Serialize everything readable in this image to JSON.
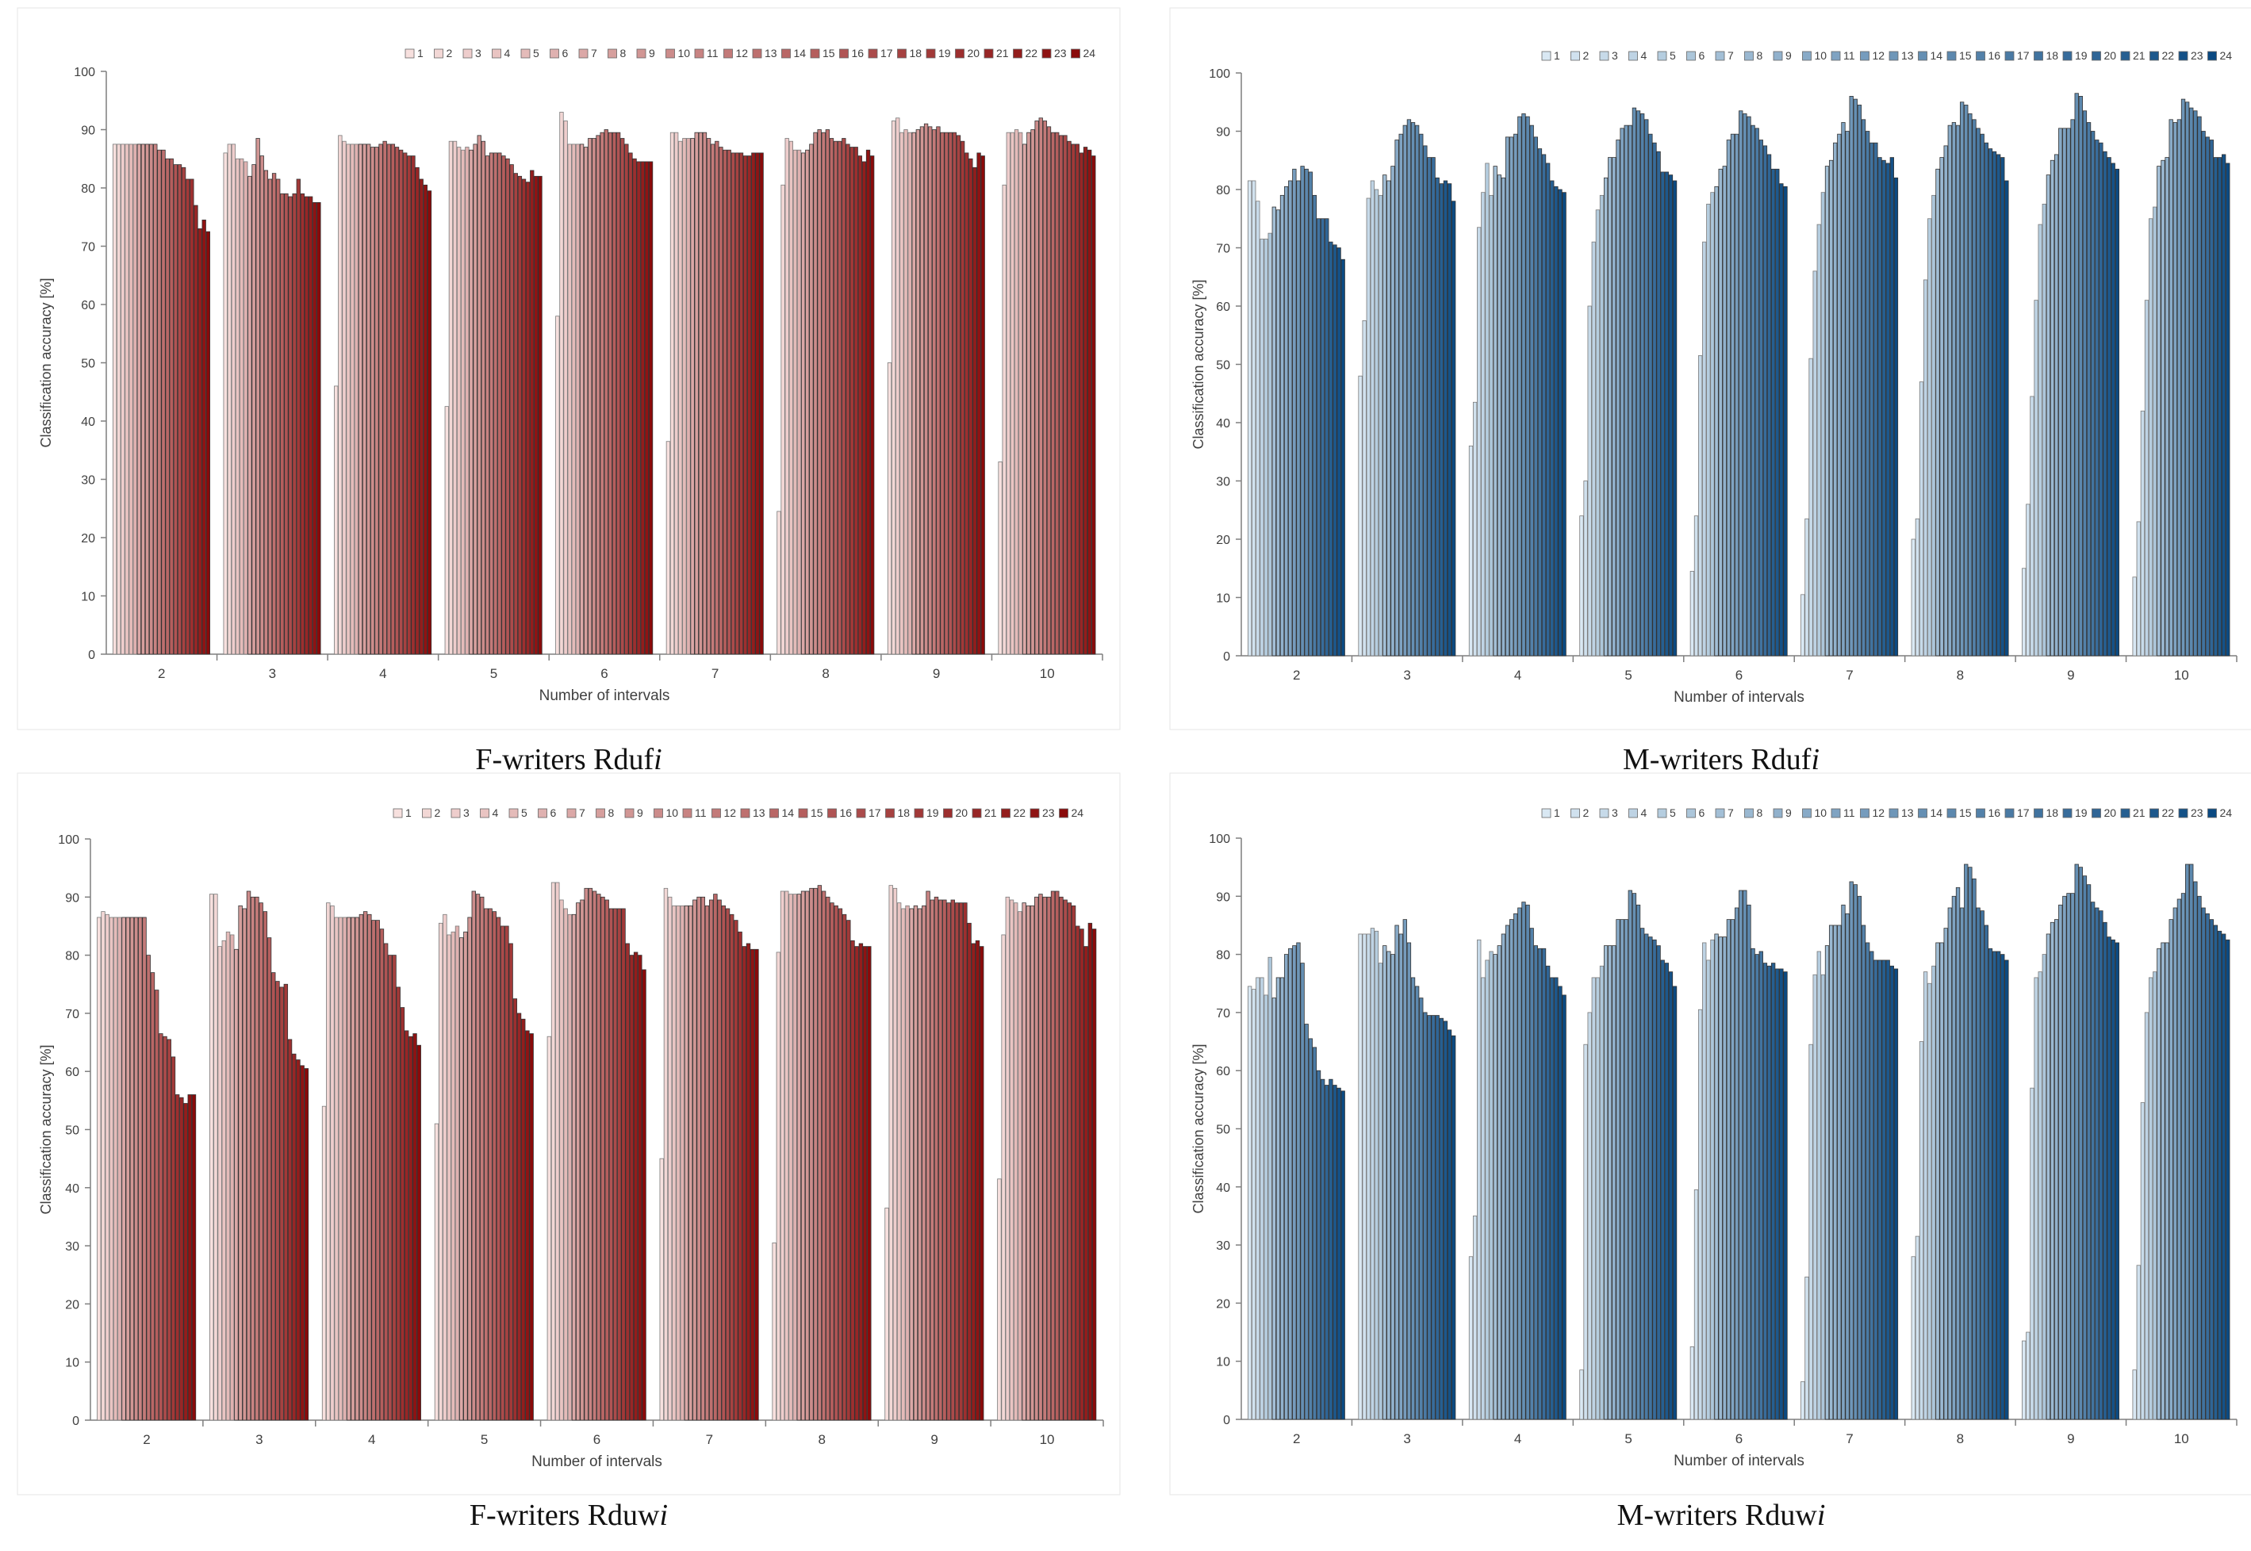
{
  "figure": {
    "panels": [
      {
        "caption_prefix": "F-writers Rduf",
        "caption_italic": "i"
      },
      {
        "caption_prefix": "M-writers Rduf",
        "caption_italic": "i"
      },
      {
        "caption_prefix": "F-writers Rduw",
        "caption_italic": "i"
      },
      {
        "caption_prefix": "M-writers Rduw",
        "caption_italic": "i"
      }
    ]
  },
  "chart_data": [
    {
      "type": "bar",
      "title": "F-writers Rdufi",
      "xlabel": "Number of intervals",
      "ylabel": "Classification accuracy [%]",
      "ylim": [
        0,
        100
      ],
      "yticks": [
        "0",
        "10",
        "20",
        "30",
        "40",
        "50",
        "60",
        "70",
        "80",
        "90",
        "100"
      ],
      "categories": [
        "2",
        "3",
        "4",
        "5",
        "6",
        "7",
        "8",
        "9",
        "10"
      ],
      "legend": [
        "1",
        "2",
        "3",
        "4",
        "5",
        "6",
        "7",
        "8",
        "9",
        "10",
        "11",
        "12",
        "13",
        "14",
        "15",
        "16",
        "17",
        "18",
        "19",
        "20",
        "21",
        "22",
        "23",
        "24"
      ],
      "colors": {
        "light": "#f7e0de",
        "dark": "#8a0a0a"
      },
      "values": [
        [
          87.5,
          87.5,
          87.5,
          87.5,
          87.5,
          87.5,
          87.5,
          87.5,
          87.5,
          87.5,
          87.5,
          86.5,
          86.5,
          85,
          85,
          84,
          84,
          83.5,
          81.5,
          81.5,
          77,
          73,
          74.5,
          72.5
        ],
        [
          86,
          87.5,
          87.5,
          85,
          85,
          84.5,
          82,
          84,
          88.5,
          85.5,
          83,
          81.5,
          82.5,
          81.5,
          79,
          79,
          78.5,
          79,
          81.5,
          79,
          78.5,
          78.5,
          77.5,
          77.5
        ],
        [
          46,
          89,
          88,
          87.5,
          87.5,
          87.5,
          87.5,
          87.5,
          87.5,
          87,
          87,
          87.5,
          88,
          87.5,
          87.5,
          87,
          86.5,
          86,
          85.5,
          85.5,
          83.5,
          81.5,
          80.5,
          79.5
        ],
        [
          42.5,
          88,
          88,
          87,
          86.5,
          87,
          86.5,
          87.5,
          89,
          88,
          85.5,
          86,
          86,
          86,
          85.5,
          85,
          84,
          82.5,
          82,
          81.5,
          81,
          83,
          82,
          82
        ],
        [
          58,
          93,
          91.5,
          87.5,
          87.5,
          87.5,
          87.5,
          87,
          88.5,
          88.5,
          89,
          89.5,
          90,
          89.5,
          89.5,
          89.5,
          88.5,
          87.5,
          86,
          85,
          84.5,
          84.5,
          84.5,
          84.5
        ],
        [
          36.5,
          89.5,
          89.5,
          88,
          88.5,
          88.5,
          88.5,
          89.5,
          89.5,
          89.5,
          88.5,
          87.5,
          88,
          87,
          86.5,
          86.5,
          86,
          86,
          86,
          85.5,
          85.5,
          86,
          86,
          86
        ],
        [
          24.5,
          80.5,
          88.5,
          88,
          86.5,
          86.5,
          86,
          86.5,
          87.5,
          89.5,
          90,
          89.5,
          90,
          88.5,
          88,
          88,
          88.5,
          87.5,
          87,
          87,
          85.5,
          84.5,
          86.5,
          85.5
        ],
        [
          50,
          91.5,
          92,
          89.5,
          90,
          89.5,
          89.5,
          90,
          90.5,
          91,
          90.5,
          90,
          90.5,
          89.5,
          89.5,
          89.5,
          89.5,
          89,
          88,
          86,
          85,
          83.5,
          86,
          85.5
        ],
        [
          33,
          80.5,
          89.5,
          89.5,
          90,
          89.5,
          87.5,
          89.5,
          90,
          91.5,
          92,
          91.5,
          90.5,
          89.5,
          89.5,
          89,
          89,
          88,
          87.5,
          87.5,
          86,
          87,
          86.5,
          85.5
        ]
      ]
    },
    {
      "type": "bar",
      "title": "M-writers Rdufi",
      "xlabel": "Number of intervals",
      "ylabel": "Classification accuracy [%]",
      "ylim": [
        0,
        100
      ],
      "yticks": [
        "0",
        "10",
        "20",
        "30",
        "40",
        "50",
        "60",
        "70",
        "80",
        "90",
        "100"
      ],
      "categories": [
        "2",
        "3",
        "4",
        "5",
        "6",
        "7",
        "8",
        "9",
        "10"
      ],
      "legend": [
        "1",
        "2",
        "3",
        "4",
        "5",
        "6",
        "7",
        "8",
        "9",
        "10",
        "11",
        "12",
        "13",
        "14",
        "15",
        "16",
        "17",
        "18",
        "19",
        "20",
        "21",
        "22",
        "23",
        "24"
      ],
      "colors": {
        "light": "#d9e8f3",
        "dark": "#0b4a82"
      },
      "values": [
        [
          81.5,
          81.5,
          78,
          71.5,
          71.5,
          72.5,
          77,
          76.5,
          79,
          80.5,
          81.5,
          83.5,
          81.5,
          84,
          83.5,
          83,
          79,
          75,
          75,
          75,
          71,
          70.5,
          70,
          68
        ],
        [
          48,
          57.5,
          78.5,
          81.5,
          80,
          79,
          82.5,
          81.5,
          84,
          88.5,
          89.5,
          91,
          92,
          91.5,
          91,
          89.5,
          87.5,
          85.5,
          85.5,
          82,
          81,
          81.5,
          81,
          78
        ],
        [
          36,
          43.5,
          73.5,
          79.5,
          84.5,
          79,
          84,
          82.5,
          82,
          89,
          89,
          89.5,
          92.5,
          93,
          92.5,
          91,
          89,
          87,
          86,
          84.5,
          81.5,
          80.5,
          80,
          79.5
        ],
        [
          24,
          30,
          60,
          71,
          76.5,
          79,
          82,
          85.5,
          85.5,
          88.5,
          90.5,
          91,
          91,
          94,
          93.5,
          93,
          92,
          89.5,
          88,
          86.5,
          83,
          83,
          82.5,
          81.5
        ],
        [
          14.5,
          24,
          51.5,
          71,
          77.5,
          79.5,
          80.5,
          83.5,
          84,
          88.5,
          89.5,
          89.5,
          93.5,
          93,
          92.5,
          91,
          90.5,
          88.5,
          87.5,
          86,
          83.5,
          83.5,
          81,
          80.5
        ],
        [
          10.5,
          23.5,
          51,
          66,
          74,
          79.5,
          84,
          85,
          88,
          89.5,
          91.5,
          90,
          96,
          95.5,
          94.5,
          92,
          90,
          88,
          88,
          85.5,
          85,
          84.5,
          85.5,
          82
        ],
        [
          20,
          23.5,
          47,
          64.5,
          75,
          79,
          83.5,
          85.5,
          87.5,
          91,
          91.5,
          91,
          95,
          94.5,
          93,
          92,
          90.5,
          89.5,
          88,
          87,
          86.5,
          86,
          85.5,
          81.5
        ],
        [
          15,
          26,
          44.5,
          61,
          74,
          77.5,
          82.5,
          85,
          86,
          90.5,
          90.5,
          90.5,
          92,
          96.5,
          96,
          93.5,
          91.5,
          90,
          88.5,
          88,
          86.5,
          85.5,
          84.5,
          83.5
        ],
        [
          13.5,
          23,
          42,
          61,
          75,
          77,
          84,
          85,
          85.5,
          92,
          91.5,
          92,
          95.5,
          95,
          94,
          93.5,
          92.5,
          90,
          89,
          88.5,
          85.5,
          85.5,
          86,
          84.5
        ]
      ]
    },
    {
      "type": "bar",
      "title": "F-writers Rduwi",
      "xlabel": "Number of intervals",
      "ylabel": "Classification accuracy [%]",
      "ylim": [
        0,
        100
      ],
      "yticks": [
        "0",
        "10",
        "20",
        "30",
        "40",
        "50",
        "60",
        "70",
        "80",
        "90",
        "100"
      ],
      "categories": [
        "2",
        "3",
        "4",
        "5",
        "6",
        "7",
        "8",
        "9",
        "10"
      ],
      "legend": [
        "1",
        "2",
        "3",
        "4",
        "5",
        "6",
        "7",
        "8",
        "9",
        "10",
        "11",
        "12",
        "13",
        "14",
        "15",
        "16",
        "17",
        "18",
        "19",
        "20",
        "21",
        "22",
        "23",
        "24"
      ],
      "colors": {
        "light": "#f7e0de",
        "dark": "#8a0a0a"
      },
      "values": [
        [
          86.5,
          87.5,
          87,
          86.5,
          86.5,
          86.5,
          86.5,
          86.5,
          86.5,
          86.5,
          86.5,
          86.5,
          80,
          77,
          74,
          66.5,
          66,
          65.5,
          62.5,
          56,
          55.5,
          54.5,
          56,
          56
        ],
        [
          90.5,
          90.5,
          81.5,
          82.5,
          84,
          83.5,
          81,
          88.5,
          88,
          91,
          90,
          90,
          89,
          87.5,
          83,
          77,
          75.5,
          74.5,
          75,
          65.5,
          63,
          62,
          61,
          60.5
        ],
        [
          54,
          89,
          88.5,
          86.5,
          86.5,
          86.5,
          86.5,
          86.5,
          86.5,
          87,
          87.5,
          87,
          86,
          86,
          84.5,
          82,
          80,
          80,
          74.5,
          71,
          67,
          66,
          66.5,
          64.5
        ],
        [
          51,
          85.5,
          87,
          83.5,
          84,
          85,
          83,
          84,
          86.5,
          91,
          90.5,
          90,
          88,
          88,
          87.5,
          86.5,
          85,
          85,
          82,
          72.5,
          70,
          69,
          67,
          66.5
        ],
        [
          66,
          92.5,
          92.5,
          89.5,
          88,
          87,
          87,
          89,
          89.5,
          91.5,
          91.5,
          91,
          90.5,
          90,
          89.5,
          88,
          88,
          88,
          88,
          82,
          80,
          80.5,
          80,
          77.5
        ],
        [
          45,
          91.5,
          90,
          88.5,
          88.5,
          88.5,
          88.5,
          88.5,
          89.5,
          90,
          90,
          88.5,
          89.5,
          90.5,
          89.5,
          88.5,
          88,
          87,
          86,
          84,
          81.5,
          82,
          81,
          81
        ],
        [
          30.5,
          80.5,
          91,
          91,
          90.5,
          90.5,
          90.5,
          91,
          91,
          91.5,
          91.5,
          92,
          91,
          90,
          89,
          88.5,
          88,
          87,
          86,
          82.5,
          81.5,
          82,
          81.5,
          81.5
        ],
        [
          36.5,
          92,
          91.5,
          89,
          88,
          88.5,
          88,
          88.5,
          88,
          88.5,
          91,
          89.5,
          90,
          89.5,
          89.5,
          89,
          89.5,
          89,
          89,
          89,
          85.5,
          82,
          82.5,
          81.5
        ],
        [
          41.5,
          83.5,
          90,
          89.5,
          89,
          87.5,
          89,
          88.5,
          88.5,
          90,
          90.5,
          90,
          90,
          91,
          91,
          90,
          89.5,
          89,
          88.5,
          85,
          84.5,
          81.5,
          85.5,
          84.5
        ]
      ]
    },
    {
      "type": "bar",
      "title": "M-writers Rduwi",
      "xlabel": "Number of intervals",
      "ylabel": "Classification accuracy [%]",
      "ylim": [
        0,
        100
      ],
      "yticks": [
        "0",
        "10",
        "20",
        "30",
        "40",
        "50",
        "60",
        "70",
        "80",
        "90",
        "100"
      ],
      "categories": [
        "2",
        "3",
        "4",
        "5",
        "6",
        "7",
        "8",
        "9",
        "10"
      ],
      "legend": [
        "1",
        "2",
        "3",
        "4",
        "5",
        "6",
        "7",
        "8",
        "9",
        "10",
        "11",
        "12",
        "13",
        "14",
        "15",
        "16",
        "17",
        "18",
        "19",
        "20",
        "21",
        "22",
        "23",
        "24"
      ],
      "colors": {
        "light": "#d9e8f3",
        "dark": "#0b4a82"
      },
      "values": [
        [
          74.5,
          74,
          76,
          76,
          73,
          79.5,
          72.5,
          76,
          76,
          80,
          81,
          81.5,
          82,
          78.5,
          68,
          65.5,
          64,
          60,
          58.5,
          57.5,
          58.5,
          57.5,
          57,
          56.5
        ],
        [
          83.5,
          83.5,
          83.5,
          84.5,
          84,
          78.5,
          81.5,
          80.5,
          80,
          85,
          83.5,
          86,
          82,
          76,
          74.5,
          72.5,
          70,
          69.5,
          69.5,
          69.5,
          69,
          68.5,
          67,
          66
        ],
        [
          28,
          35,
          82.5,
          76,
          79,
          80.5,
          80,
          81.5,
          83.5,
          85,
          86,
          87,
          88,
          89,
          88.5,
          84.5,
          81.5,
          81,
          81,
          78,
          76,
          76,
          74.5,
          73
        ],
        [
          8.5,
          64.5,
          70,
          76,
          76,
          78,
          81.5,
          81.5,
          81.5,
          86,
          86,
          86,
          91,
          90.5,
          88.5,
          84.5,
          83.5,
          83,
          82.5,
          81.5,
          79,
          78.5,
          77,
          74.5
        ],
        [
          12.5,
          39.5,
          70.5,
          82,
          79,
          82.5,
          83.5,
          83,
          83,
          86,
          86,
          88,
          91,
          91,
          88.5,
          81,
          80,
          80.5,
          78.5,
          78,
          78.5,
          77.5,
          77.5,
          77
        ],
        [
          6.5,
          24.5,
          64.5,
          76.5,
          80.5,
          76.5,
          81.5,
          85,
          85,
          85,
          88.5,
          87,
          92.5,
          92,
          90,
          85,
          82,
          80.5,
          79,
          79,
          79,
          79,
          78,
          77.5
        ],
        [
          28,
          31.5,
          65,
          77,
          75,
          78,
          82,
          82,
          84.5,
          88,
          90,
          91.5,
          88,
          95.5,
          95,
          93,
          88,
          87.5,
          85,
          81,
          80.5,
          80.5,
          80,
          79
        ],
        [
          13.5,
          15,
          57,
          76,
          77,
          80,
          83.5,
          85.5,
          86,
          88.5,
          90,
          90.5,
          90.5,
          95.5,
          95,
          93.5,
          92,
          89,
          88,
          87.5,
          85.5,
          83,
          82.5,
          82
        ],
        [
          8.5,
          26.5,
          54.5,
          70,
          76,
          77,
          81,
          82,
          82,
          86,
          88,
          89.5,
          90.5,
          95.5,
          95.5,
          92.5,
          90,
          88,
          87,
          86,
          85,
          84,
          83.5,
          82.5
        ]
      ]
    }
  ]
}
